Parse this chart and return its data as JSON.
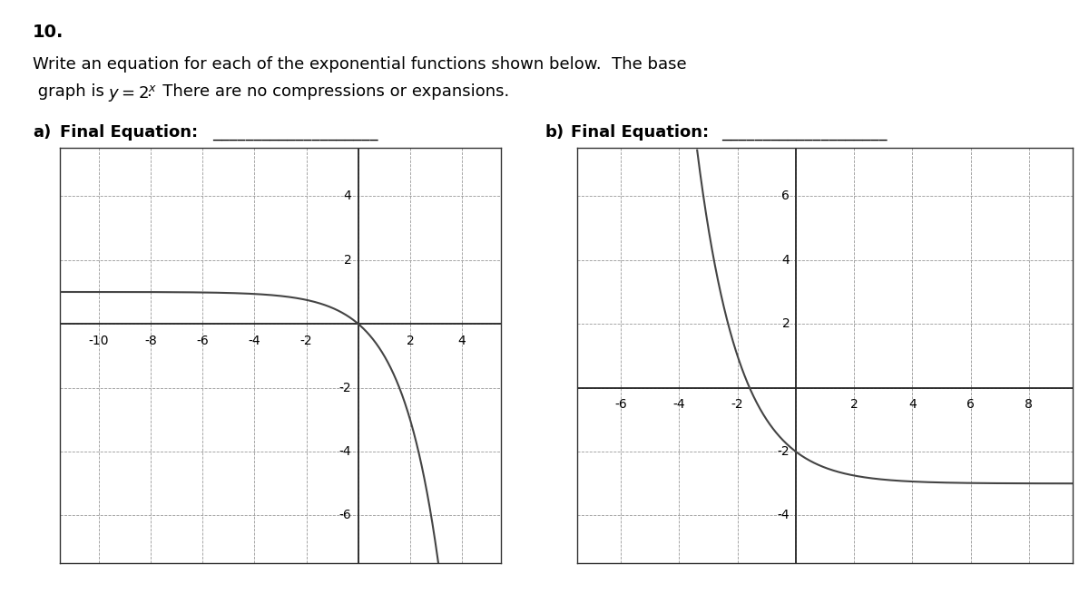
{
  "title_number": "10.",
  "description_line1": "Write an equation for each of the exponential functions shown below.  The base",
  "description_line2_part1": " graph is ",
  "description_line2_math": "y = 2^{x}",
  "description_line2_part2": ".  There are no compressions or expansions.",
  "label_a": "a)  Final Equation:",
  "label_b": "b)  Final Equation:",
  "graph_a": {
    "xlim": [
      -11.5,
      5.5
    ],
    "ylim": [
      -7.5,
      5.5
    ],
    "xticks": [
      -10,
      -8,
      -6,
      -4,
      -2,
      0,
      2,
      4
    ],
    "yticks": [
      -6,
      -4,
      -2,
      0,
      2,
      4
    ],
    "curve_func": "1 - 2^x"
  },
  "graph_b": {
    "xlim": [
      -7.5,
      9.5
    ],
    "ylim": [
      -5.5,
      7.5
    ],
    "xticks": [
      -6,
      -4,
      -2,
      0,
      2,
      4,
      6,
      8
    ],
    "yticks": [
      -4,
      -2,
      0,
      2,
      4,
      6
    ],
    "curve_func": "2^(-x) - 3"
  },
  "background_color": "#ffffff",
  "grid_color": "#999999",
  "axis_color": "#222222",
  "curve_color": "#444444",
  "text_color": "#000000",
  "font_size_number": 14,
  "font_size_text": 13,
  "font_size_label": 13,
  "font_size_tick": 10
}
